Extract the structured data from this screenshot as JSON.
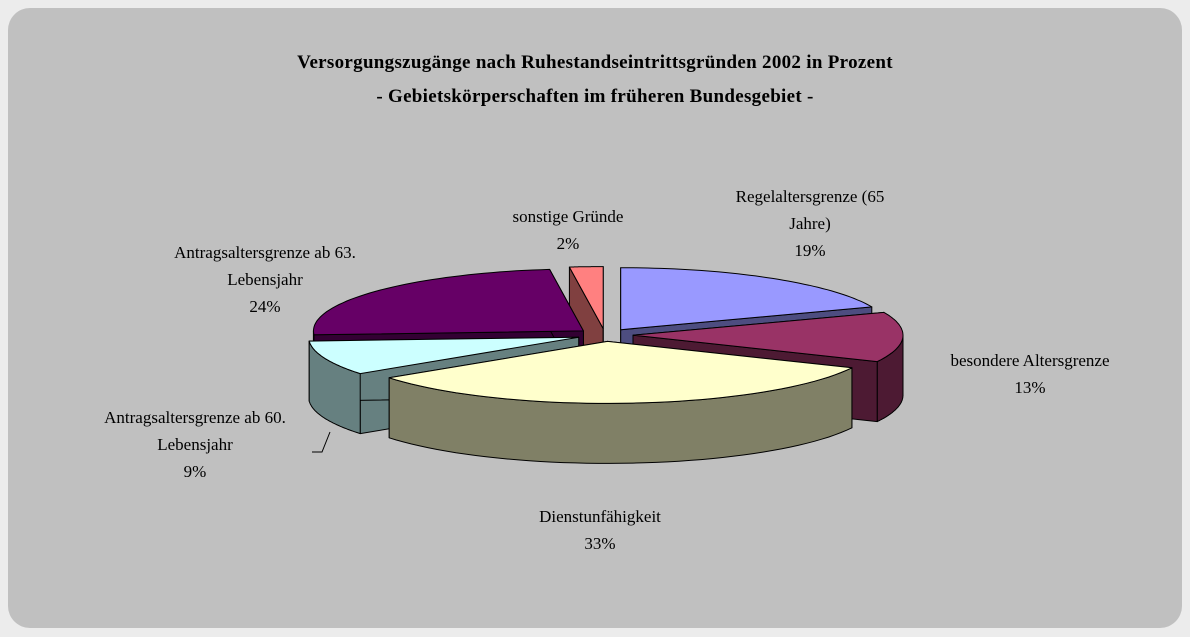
{
  "chart_data": {
    "type": "pie",
    "title": "Versorgungszugänge nach Ruhestandseintrittsgründen 2002 in Prozent",
    "subtitle": "- Gebietskörperschaften im früheren Bundesgebiet -",
    "categories": [
      "Regelaltersgrenze (65 Jahre)",
      "besondere Altersgrenze",
      "Dienstunfähigkeit",
      "Antragsaltersgrenze ab 60. Lebensjahr",
      "Antragsaltersgrenze ab 63. Lebensjahr",
      "sonstige Gründe"
    ],
    "values": [
      19,
      13,
      33,
      9,
      24,
      2
    ],
    "value_labels": [
      "19%",
      "13%",
      "33%",
      "9%",
      "24%",
      "2%"
    ],
    "colors": [
      "#9999ff",
      "#993366",
      "#ffffcc",
      "#ccffff",
      "#660066",
      "#ff8080"
    ]
  }
}
